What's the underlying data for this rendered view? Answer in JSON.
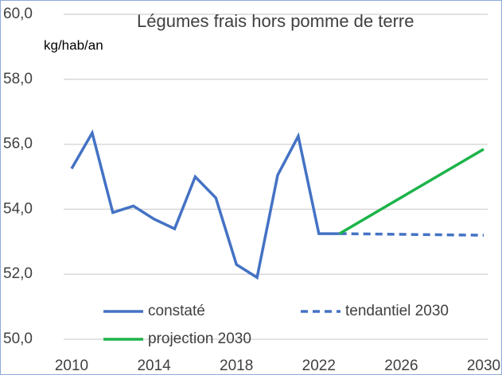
{
  "chart_data": {
    "type": "line",
    "title": "Légumes frais hors pomme de terre",
    "y_label": "kg/hab/an",
    "xlim": [
      2010,
      2030
    ],
    "xticks": [
      2010,
      2014,
      2018,
      2022,
      2026,
      2030
    ],
    "ylim": [
      50,
      60
    ],
    "yticks": [
      {
        "value": 50,
        "label": "50,0"
      },
      {
        "value": 52,
        "label": "52,0"
      },
      {
        "value": 54,
        "label": "54,0"
      },
      {
        "value": 56,
        "label": "56,0"
      },
      {
        "value": 58,
        "label": "58,0"
      },
      {
        "value": 60,
        "label": "60,0"
      }
    ],
    "grid": true,
    "series": [
      {
        "name": "constaté",
        "color": "#4472c4",
        "dash": false,
        "x": [
          2010,
          2011,
          2012,
          2013,
          2014,
          2015,
          2016,
          2017,
          2018,
          2019,
          2020,
          2021,
          2022,
          2023
        ],
        "values": [
          55.25,
          56.35,
          53.9,
          54.1,
          53.7,
          53.4,
          55.0,
          54.35,
          52.3,
          51.9,
          55.05,
          56.25,
          53.25,
          53.25
        ]
      },
      {
        "name": "tendantiel 2030",
        "color": "#4472c4",
        "dash": true,
        "x": [
          2023,
          2030
        ],
        "values": [
          53.25,
          53.2
        ]
      },
      {
        "name": "projection 2030",
        "color": "#1db34a",
        "dash": false,
        "x": [
          2023,
          2030
        ],
        "values": [
          53.25,
          55.85
        ]
      }
    ]
  }
}
